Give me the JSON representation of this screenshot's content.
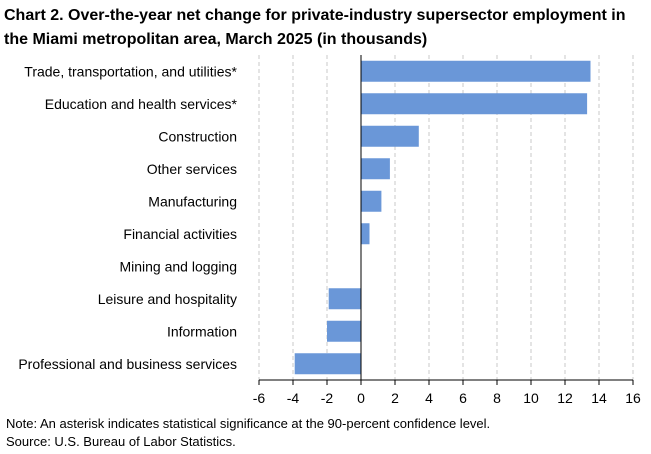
{
  "header": {
    "title_line1": "Chart 2. Over-the-year net change for private-industry supersector employment in",
    "title_line2": "the Miami metropolitan area, March 2025 (in thousands)"
  },
  "footer": {
    "note": "Note: An asterisk indicates statistical significance at the 90-percent confidence level.",
    "source": "Source: U.S. Bureau of Labor Statistics."
  },
  "colors": {
    "bar": "#6a97d8",
    "grid": "#c8c8c8",
    "axis": "#000000"
  },
  "chart_data": {
    "type": "bar",
    "orientation": "horizontal",
    "title": "Chart 2. Over-the-year net change for private-industry supersector employment in the Miami metropolitan area, March 2025 (in thousands)",
    "categories": [
      "Trade, transportation, and utilities*",
      "Education and health services*",
      "Construction",
      "Other services",
      "Manufacturing",
      "Financial activities",
      "Mining and logging",
      "Leisure and hospitality",
      "Information",
      "Professional and business services"
    ],
    "values": [
      13.5,
      13.3,
      3.4,
      1.7,
      1.2,
      0.5,
      0.0,
      -1.9,
      -2.0,
      -3.9
    ],
    "xlim": [
      -6,
      16
    ],
    "xticks": [
      "-6",
      "-4",
      "-2",
      "0",
      "2",
      "4",
      "6",
      "8",
      "10",
      "12",
      "14",
      "16"
    ],
    "grid": "vertical dashed",
    "legend": "none"
  }
}
